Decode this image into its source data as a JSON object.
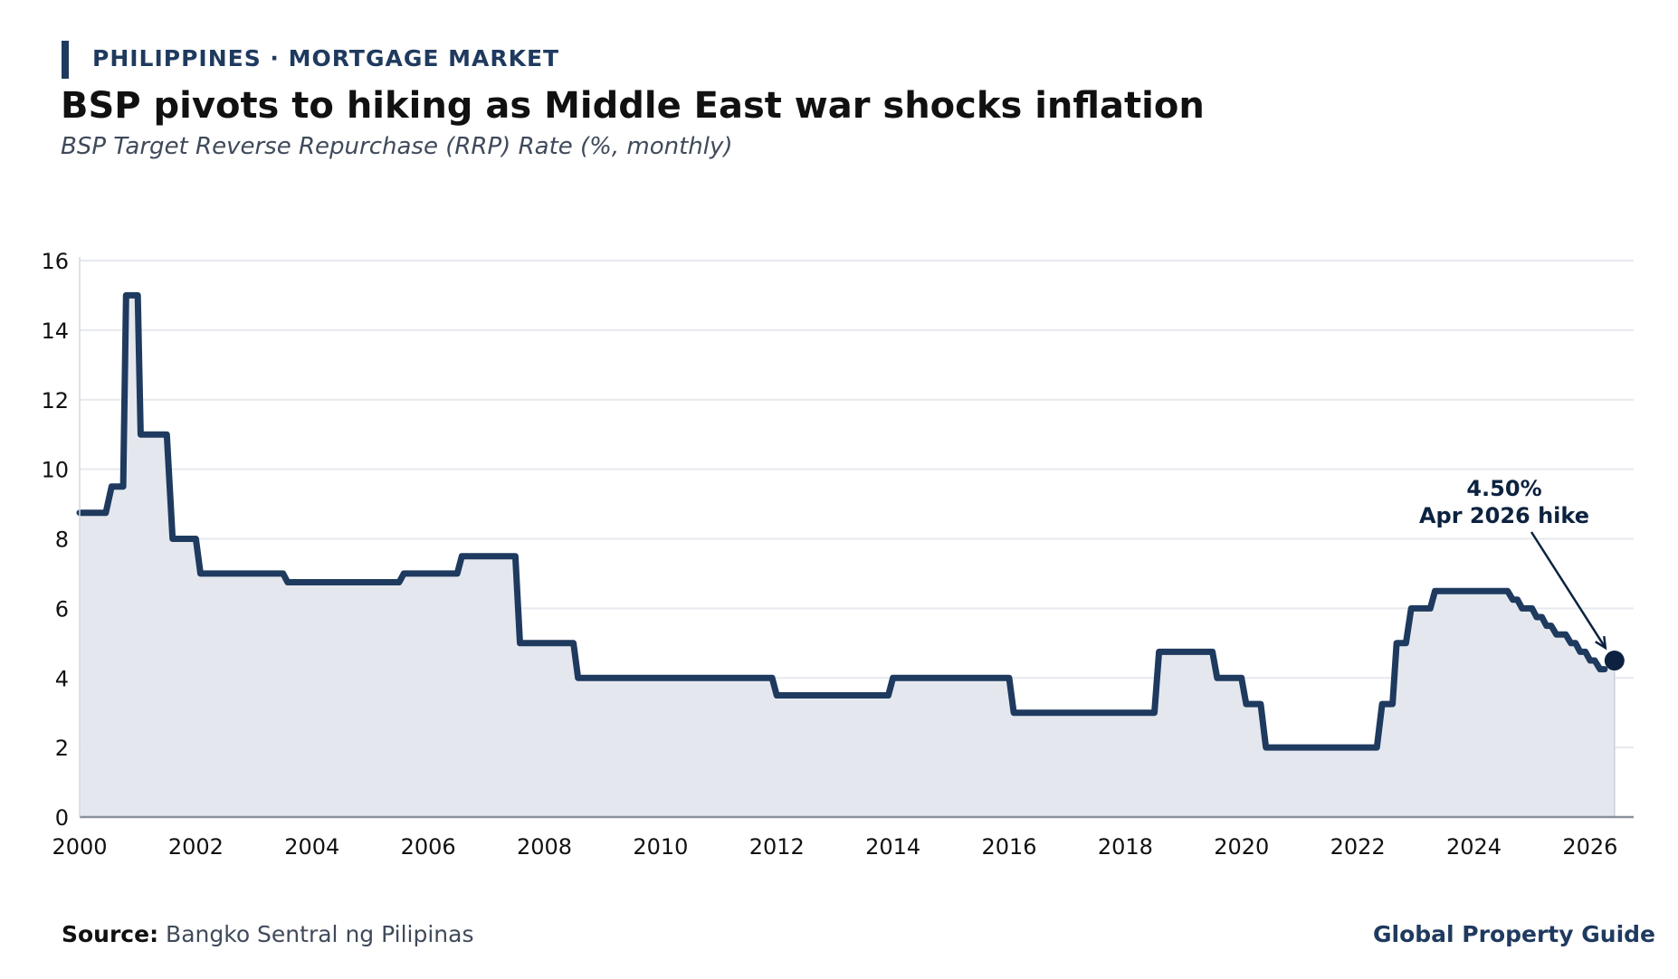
{
  "header": {
    "eyebrow": "PHILIPPINES · MORTGAGE MARKET",
    "title": "BSP pivots to hiking as Middle East war shocks inflation",
    "subtitle": "BSP Target Reverse Repurchase (RRP) Rate (%, monthly)"
  },
  "footer": {
    "source_label": "Source:",
    "source_text": "Bangko Sentral ng Pilipinas",
    "brand": "Global Property Guide"
  },
  "colors": {
    "line": "#1f3a5f",
    "fill": "#e3e7ed",
    "grid": "#e6e9ee",
    "marker": "#0d2240"
  },
  "chart_data": {
    "type": "area",
    "title": "BSP pivots to hiking as Middle East war shocks inflation",
    "subtitle": "BSP Target Reverse Repurchase (RRP) Rate (%, monthly)",
    "xlabel": "",
    "ylabel": "",
    "xlim": [
      2000.0,
      2026.75
    ],
    "ylim": [
      0,
      16
    ],
    "grid": true,
    "x_ticks": [
      2000,
      2002,
      2004,
      2006,
      2008,
      2010,
      2012,
      2014,
      2016,
      2018,
      2020,
      2022,
      2024,
      2026
    ],
    "y_ticks": [
      0,
      2,
      4,
      6,
      8,
      10,
      12,
      14,
      16
    ],
    "series": [
      {
        "values": [
          [
            2000.0,
            8.75
          ],
          [
            2000.45,
            8.75
          ],
          [
            2000.55,
            9.5
          ],
          [
            2000.75,
            9.5
          ],
          [
            2000.8,
            15.0
          ],
          [
            2001.0,
            15.0
          ],
          [
            2001.05,
            11.0
          ],
          [
            2001.5,
            11.0
          ],
          [
            2001.6,
            8.0
          ],
          [
            2002.0,
            8.0
          ],
          [
            2002.08,
            7.0
          ],
          [
            2003.5,
            7.0
          ],
          [
            2003.58,
            6.75
          ],
          [
            2005.5,
            6.75
          ],
          [
            2005.58,
            7.0
          ],
          [
            2006.5,
            7.0
          ],
          [
            2006.58,
            7.5
          ],
          [
            2007.5,
            7.5
          ],
          [
            2007.58,
            5.0
          ],
          [
            2008.5,
            5.0
          ],
          [
            2008.58,
            4.0
          ],
          [
            2011.92,
            4.0
          ],
          [
            2012.0,
            3.5
          ],
          [
            2013.92,
            3.5
          ],
          [
            2014.0,
            4.0
          ],
          [
            2016.0,
            4.0
          ],
          [
            2016.08,
            3.0
          ],
          [
            2018.5,
            3.0
          ],
          [
            2018.58,
            4.75
          ],
          [
            2019.5,
            4.75
          ],
          [
            2019.58,
            4.0
          ],
          [
            2020.0,
            4.0
          ],
          [
            2020.08,
            3.25
          ],
          [
            2020.33,
            3.25
          ],
          [
            2020.42,
            2.0
          ],
          [
            2022.33,
            2.0
          ],
          [
            2022.42,
            3.25
          ],
          [
            2022.6,
            3.25
          ],
          [
            2022.67,
            5.0
          ],
          [
            2022.83,
            5.0
          ],
          [
            2022.92,
            6.0
          ],
          [
            2023.25,
            6.0
          ],
          [
            2023.33,
            6.5
          ],
          [
            2024.58,
            6.5
          ],
          [
            2024.67,
            6.25
          ],
          [
            2024.75,
            6.25
          ],
          [
            2024.83,
            6.0
          ],
          [
            2025.0,
            6.0
          ],
          [
            2025.08,
            5.75
          ],
          [
            2025.17,
            5.75
          ],
          [
            2025.25,
            5.5
          ],
          [
            2025.33,
            5.5
          ],
          [
            2025.42,
            5.25
          ],
          [
            2025.58,
            5.25
          ],
          [
            2025.67,
            5.0
          ],
          [
            2025.75,
            5.0
          ],
          [
            2025.83,
            4.75
          ],
          [
            2025.92,
            4.75
          ],
          [
            2026.0,
            4.5
          ],
          [
            2026.08,
            4.5
          ],
          [
            2026.17,
            4.25
          ],
          [
            2026.25,
            4.25
          ]
        ]
      }
    ],
    "highlight": {
      "x": 2026.42,
      "y": 4.5,
      "label_value": "4.50%",
      "label_text": "Apr 2026 hike"
    }
  }
}
